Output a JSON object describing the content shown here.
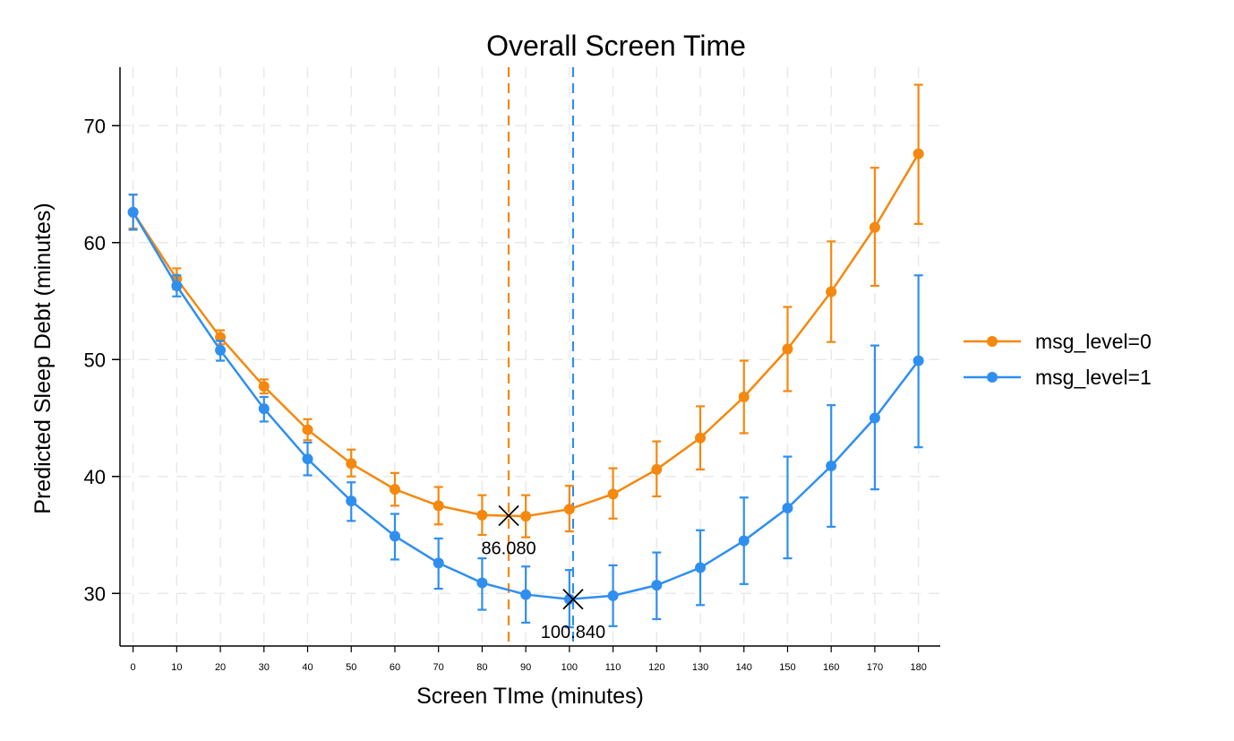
{
  "chart_data": {
    "type": "line",
    "title": "Overall Screen Time",
    "xlabel": "Screen TIme (minutes)",
    "ylabel": "Predicted Sleep Debt (minutes)",
    "xlim": [
      -3,
      185
    ],
    "ylim": [
      25.5,
      75
    ],
    "x": [
      0,
      10,
      20,
      30,
      40,
      50,
      60,
      70,
      80,
      90,
      100,
      110,
      120,
      130,
      140,
      150,
      160,
      170,
      180
    ],
    "x_tick_labels": [
      "0",
      "10",
      "20",
      "30",
      "40",
      "50",
      "60",
      "70",
      "80",
      "90",
      "100",
      "110",
      "120",
      "130",
      "140",
      "150",
      "160",
      "170",
      "180"
    ],
    "y_ticks": [
      30,
      40,
      50,
      60,
      70
    ],
    "y_tick_labels": [
      "30",
      "40",
      "50",
      "60",
      "70"
    ],
    "grid": true,
    "legend_position": "right",
    "error_bars": true,
    "series": [
      {
        "name": "msg_level=0",
        "color": "#f5880e",
        "values": [
          62.6,
          56.9,
          51.9,
          47.7,
          44.0,
          41.1,
          38.9,
          37.5,
          36.7,
          36.6,
          37.2,
          38.5,
          40.6,
          43.3,
          46.8,
          50.9,
          55.8,
          61.3,
          67.6
        ],
        "lower": [
          61.2,
          56.0,
          51.3,
          47.1,
          43.1,
          40.0,
          37.5,
          35.9,
          35.0,
          34.8,
          35.3,
          36.4,
          38.3,
          40.6,
          43.7,
          47.3,
          51.5,
          56.3,
          61.6
        ],
        "upper": [
          64.1,
          57.8,
          52.5,
          48.3,
          44.9,
          42.3,
          40.3,
          39.1,
          38.4,
          38.4,
          39.2,
          40.7,
          43.0,
          46.0,
          49.9,
          54.5,
          60.1,
          66.4,
          73.5
        ]
      },
      {
        "name": "msg_level=1",
        "color": "#2f8ff0",
        "values": [
          62.6,
          56.3,
          50.8,
          45.8,
          41.5,
          37.9,
          34.9,
          32.6,
          30.9,
          29.9,
          29.5,
          29.8,
          30.7,
          32.2,
          34.5,
          37.3,
          40.9,
          45.0,
          49.9
        ],
        "lower": [
          61.1,
          55.4,
          49.9,
          44.7,
          40.1,
          36.2,
          32.9,
          30.4,
          28.6,
          27.5,
          27.1,
          27.2,
          27.8,
          29.0,
          30.8,
          33.0,
          35.7,
          38.9,
          42.5
        ],
        "upper": [
          64.1,
          57.2,
          51.6,
          46.8,
          42.9,
          39.5,
          36.8,
          34.7,
          33.0,
          32.3,
          32.0,
          32.4,
          33.5,
          35.4,
          38.2,
          41.7,
          46.1,
          51.2,
          57.2
        ]
      }
    ],
    "reference_lines": [
      {
        "x": 86.08,
        "color": "#f5880e",
        "style": "dashed"
      },
      {
        "x": 100.84,
        "color": "#2f8ff0",
        "style": "dashed"
      }
    ],
    "annotations": [
      {
        "x": 86.08,
        "y": 36.65,
        "label": "86.080",
        "marker": "x"
      },
      {
        "x": 100.84,
        "y": 29.5,
        "label": "100.840",
        "marker": "x"
      }
    ]
  }
}
